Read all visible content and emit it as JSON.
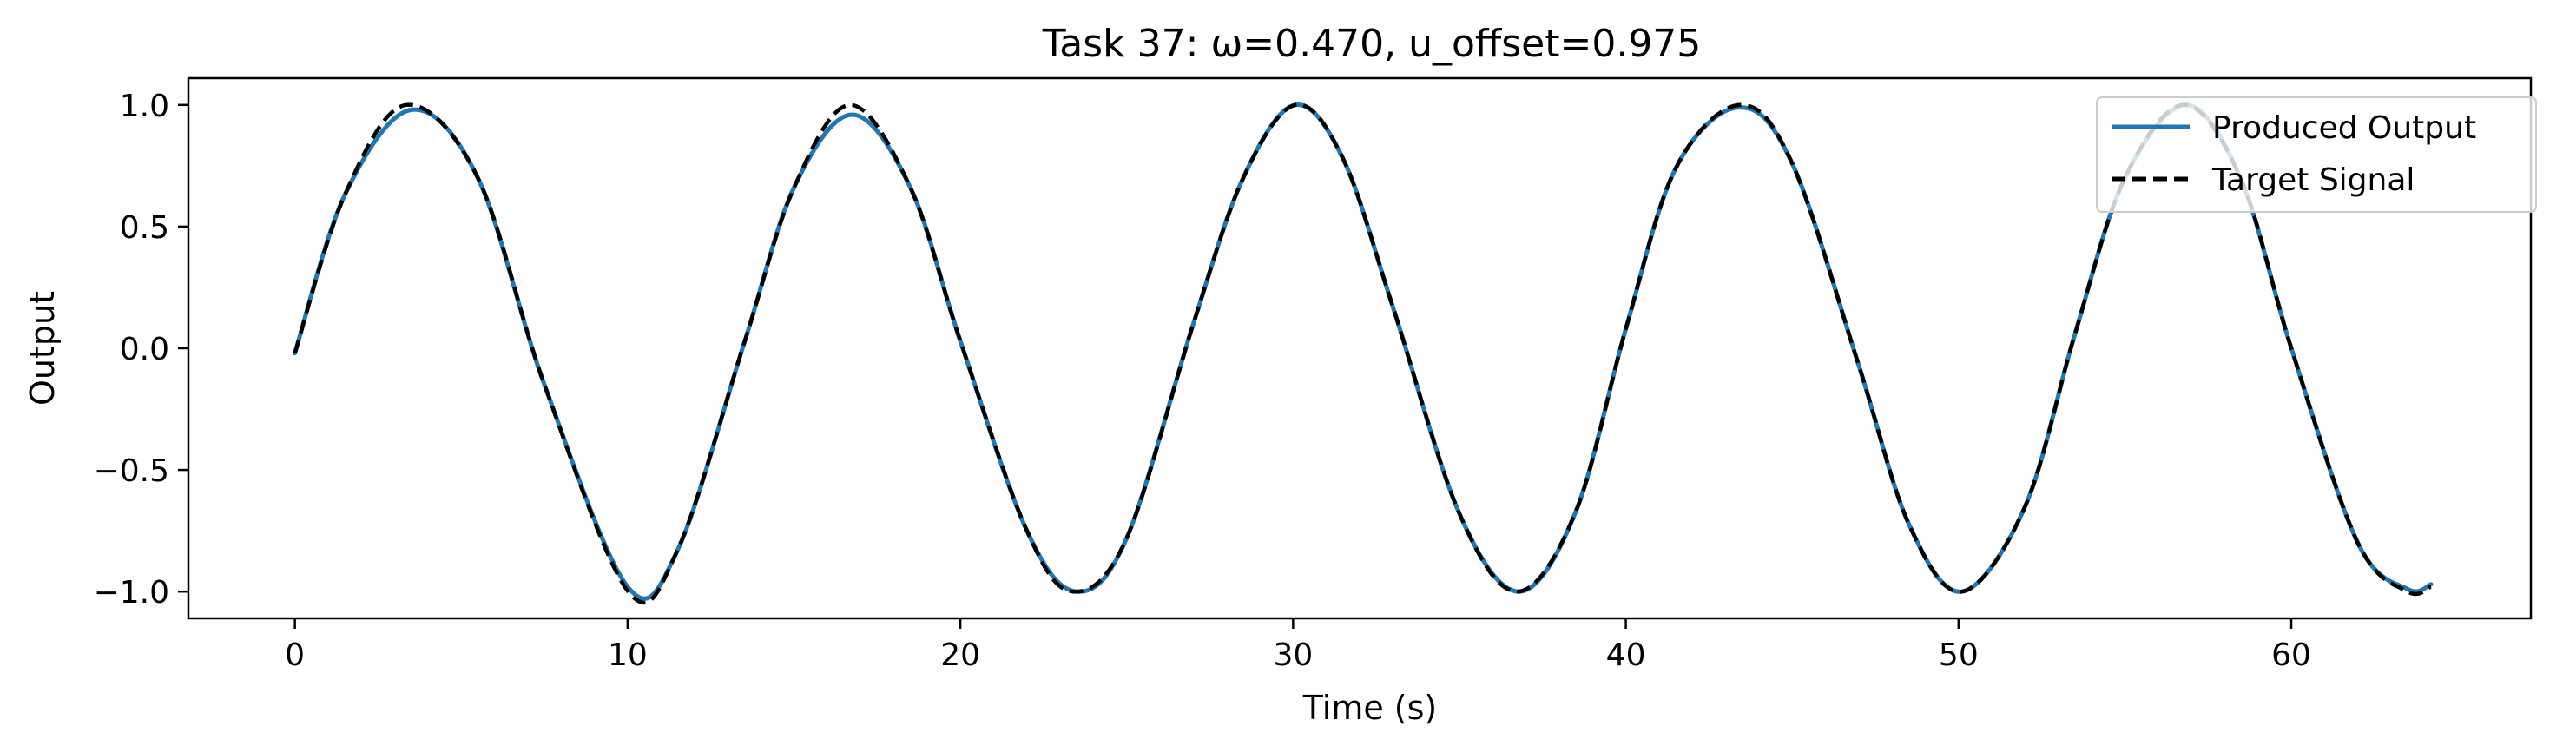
{
  "chart_data": {
    "type": "line",
    "title": "Task 37: ω=0.470, u_offset=0.975",
    "xlabel": "Time (s)",
    "ylabel": "Output",
    "xlim": [
      -3.2,
      67.2
    ],
    "ylim": [
      -1.11,
      1.11
    ],
    "xticks": [
      0,
      10,
      20,
      30,
      40,
      50,
      60
    ],
    "xtick_labels": [
      "0",
      "10",
      "20",
      "30",
      "40",
      "50",
      "60"
    ],
    "yticks": [
      1.0,
      0.5,
      0.0,
      -0.5,
      -1.0
    ],
    "ytick_labels": [
      "1.0",
      "0.5",
      "0.0",
      "−0.5",
      "−1.0"
    ],
    "grid": false,
    "legend_position": "upper right",
    "series": [
      {
        "name": "Produced Output",
        "color": "#1f77b4",
        "style": "solid",
        "x": [
          0,
          1.5,
          3.5,
          5.5,
          7.5,
          10,
          11.5,
          13.5,
          15,
          16.75,
          18.5,
          20,
          22,
          23.5,
          25,
          27,
          28.5,
          30.05,
          31.5,
          33,
          35,
          36.8,
          38.5,
          40,
          41.5,
          43.4,
          45,
          47,
          48.5,
          50.1,
          52,
          53.5,
          55,
          56.85,
          58.5,
          60,
          62,
          63.5,
          64.2
        ],
        "y": [
          -0.02,
          0.63,
          0.98,
          0.7,
          -0.15,
          -0.98,
          -0.83,
          0.02,
          0.66,
          0.96,
          0.66,
          0.03,
          -0.75,
          -1.0,
          -0.78,
          0.1,
          0.7,
          1.0,
          0.78,
          0.17,
          -0.68,
          -1.0,
          -0.67,
          0.08,
          0.74,
          0.99,
          0.76,
          -0.07,
          -0.72,
          -1.0,
          -0.65,
          0.06,
          0.7,
          1.0,
          0.69,
          0.0,
          -0.8,
          -0.99,
          -0.97
        ]
      },
      {
        "name": "Target Signal",
        "color": "#000000",
        "style": "dashed",
        "x": [
          0,
          1.5,
          3.34,
          5.5,
          7.5,
          10.02,
          11.5,
          13.5,
          15,
          16.7,
          18.5,
          20,
          22,
          23.39,
          25,
          27,
          28.5,
          30.07,
          31.5,
          33,
          35,
          36.75,
          38.5,
          40,
          41.5,
          43.43,
          45,
          47,
          48.5,
          50.1,
          52,
          53.5,
          55,
          56.79,
          58.5,
          60,
          62,
          63.5,
          64.2
        ],
        "y": [
          -0.02,
          0.63,
          1.0,
          0.7,
          -0.15,
          -1.0,
          -0.83,
          0.02,
          0.66,
          1.0,
          0.66,
          0.03,
          -0.75,
          -1.0,
          -0.78,
          0.1,
          0.7,
          1.0,
          0.78,
          0.17,
          -0.68,
          -1.0,
          -0.67,
          0.08,
          0.74,
          1.0,
          0.76,
          -0.07,
          -0.72,
          -1.0,
          -0.65,
          0.06,
          0.7,
          1.0,
          0.69,
          0.0,
          -0.8,
          -1.0,
          -0.98
        ]
      }
    ]
  }
}
